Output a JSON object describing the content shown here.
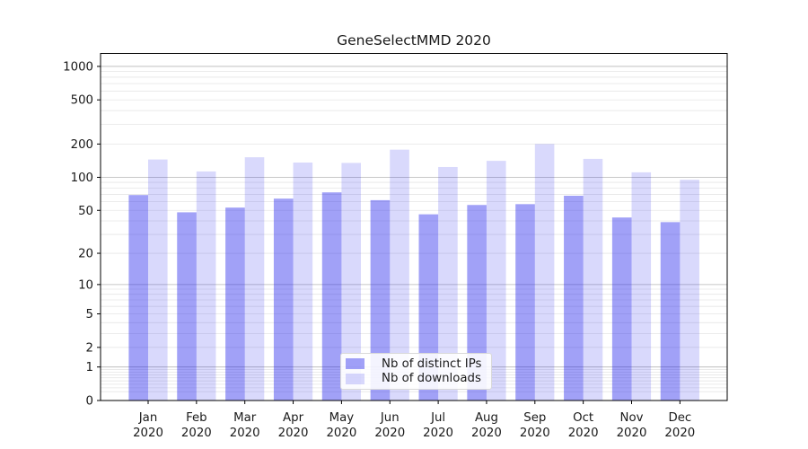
{
  "figure": {
    "title": "GeneSelectMMD 2020"
  },
  "chart_data": {
    "type": "bar",
    "title": "GeneSelectMMD 2020",
    "categories": [
      "Jan 2020",
      "Feb 2020",
      "Mar 2020",
      "Apr 2020",
      "May 2020",
      "Jun 2020",
      "Jul 2020",
      "Aug 2020",
      "Sep 2020",
      "Oct 2020",
      "Nov 2020",
      "Dec 2020"
    ],
    "x_months": [
      "Jan",
      "Feb",
      "Mar",
      "Apr",
      "May",
      "Jun",
      "Jul",
      "Aug",
      "Sep",
      "Oct",
      "Nov",
      "Dec"
    ],
    "x_year": "2020",
    "series": [
      {
        "name": "Nb of distinct IPs",
        "color": "rgba(30,30,235,0.42)",
        "values": [
          69,
          48,
          53,
          64,
          73,
          62,
          46,
          56,
          57,
          68,
          43,
          39
        ]
      },
      {
        "name": "Nb of downloads",
        "color": "rgba(30,30,235,0.17)",
        "values": [
          145,
          113,
          152,
          136,
          135,
          178,
          124,
          141,
          200,
          147,
          111,
          95
        ]
      }
    ],
    "yscale": "log1p",
    "yticks": [
      0,
      1,
      2,
      5,
      10,
      20,
      50,
      100,
      200,
      500,
      1000
    ],
    "ylim": [
      0,
      1300
    ],
    "grid": true,
    "legend_position": "lower center",
    "colors": {
      "grid_minor": "#e6e6e6",
      "grid_major": "#b6b6b6",
      "spine": "#000000",
      "text": "#1a1a1a"
    }
  }
}
